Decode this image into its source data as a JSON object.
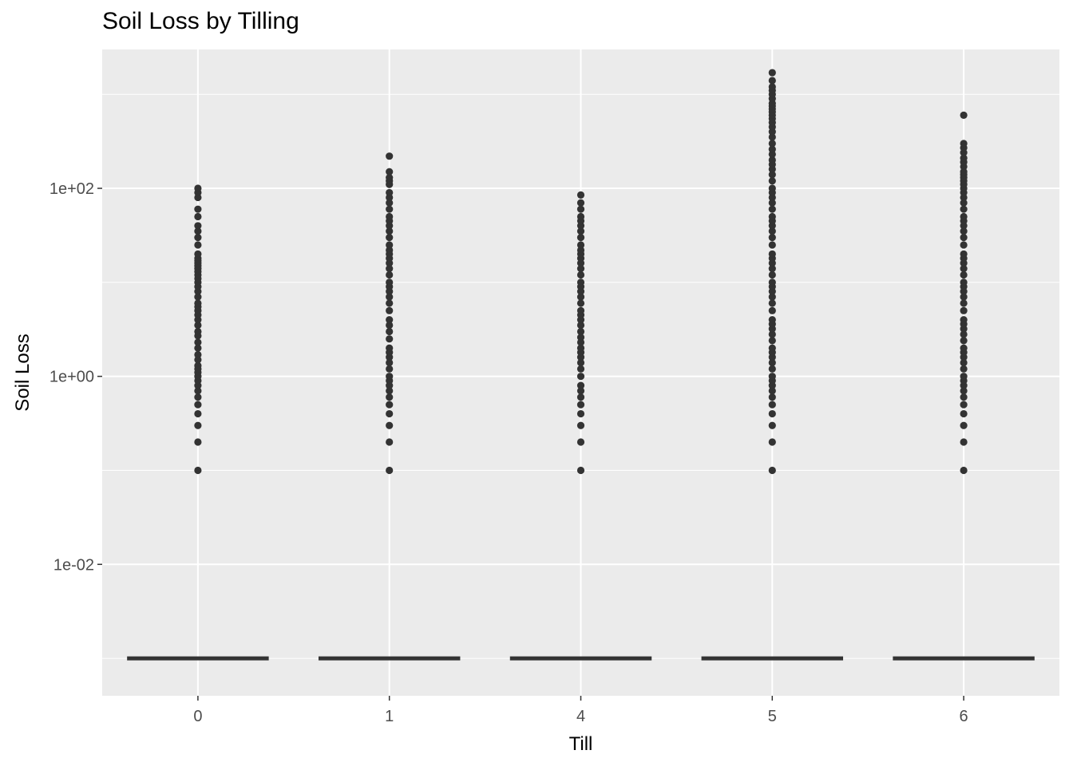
{
  "chart_data": {
    "type": "boxplot",
    "title": "Soil Loss by Tilling",
    "xlabel": "Till",
    "ylabel": "Soil Loss",
    "y_scale": "log10",
    "ylim": [
      0.0004,
      3000
    ],
    "y_ticks": [
      {
        "value": 0.01,
        "label": "1e-02"
      },
      {
        "value": 1,
        "label": "1e+00"
      },
      {
        "value": 100,
        "label": "1e+02"
      }
    ],
    "y_minor_ticks": [
      0.001,
      0.1,
      10,
      1000
    ],
    "grid": true,
    "categories": [
      "0",
      "1",
      "4",
      "5",
      "6"
    ],
    "box_median": [
      0.001,
      0.001,
      0.001,
      0.001,
      0.001
    ],
    "outliers": [
      [
        0.1,
        0.2,
        0.3,
        0.4,
        0.5,
        0.6,
        0.7,
        0.8,
        0.9,
        1,
        1.1,
        1.2,
        1.3,
        1.5,
        1.7,
        2,
        2.3,
        2.7,
        3,
        3.5,
        4,
        4.5,
        5,
        5.5,
        6,
        7,
        8,
        9,
        10,
        11,
        12,
        13,
        14,
        15,
        16,
        17,
        18,
        20,
        25,
        30,
        35,
        40,
        50,
        60,
        80,
        90,
        100
      ],
      [
        0.1,
        0.2,
        0.3,
        0.4,
        0.5,
        0.6,
        0.7,
        0.8,
        0.9,
        1,
        1.2,
        1.4,
        1.6,
        1.8,
        2,
        2.5,
        3,
        3.5,
        4,
        5,
        6,
        7,
        8,
        9,
        10,
        12,
        14,
        16,
        18,
        20,
        22,
        25,
        30,
        35,
        40,
        45,
        50,
        60,
        70,
        80,
        90,
        110,
        120,
        130,
        150,
        220
      ],
      [
        0.1,
        0.2,
        0.3,
        0.4,
        0.5,
        0.6,
        0.7,
        0.8,
        1,
        1.2,
        1.4,
        1.6,
        1.8,
        2,
        2.3,
        2.6,
        3,
        3.5,
        4,
        4.5,
        5,
        6,
        7,
        8,
        9,
        10,
        12,
        14,
        16,
        18,
        20,
        22,
        25,
        30,
        35,
        40,
        45,
        50,
        60,
        70,
        85
      ],
      [
        0.1,
        0.2,
        0.3,
        0.4,
        0.5,
        0.6,
        0.7,
        0.8,
        0.9,
        1,
        1.2,
        1.4,
        1.6,
        1.8,
        2,
        2.4,
        2.8,
        3.2,
        3.6,
        4,
        5,
        6,
        7,
        8,
        9,
        10,
        12,
        14,
        16,
        18,
        20,
        25,
        30,
        35,
        40,
        45,
        50,
        60,
        70,
        80,
        90,
        100,
        120,
        140,
        160,
        180,
        200,
        230,
        260,
        300,
        350,
        400,
        450,
        500,
        550,
        600,
        650,
        700,
        750,
        800,
        900,
        1000,
        1100,
        1200,
        1400,
        1700
      ],
      [
        0.1,
        0.2,
        0.3,
        0.4,
        0.5,
        0.6,
        0.7,
        0.8,
        0.9,
        1,
        1.2,
        1.4,
        1.6,
        1.8,
        2,
        2.4,
        2.8,
        3.2,
        3.6,
        4,
        5,
        6,
        7,
        8,
        9,
        10,
        12,
        14,
        16,
        18,
        20,
        25,
        30,
        35,
        40,
        45,
        50,
        60,
        70,
        80,
        90,
        100,
        110,
        120,
        130,
        140,
        150,
        170,
        190,
        210,
        240,
        270,
        300,
        600
      ]
    ],
    "colors": {
      "panel": "#ebebeb",
      "grid": "#ffffff",
      "points": "#333333",
      "box": "#333333"
    }
  }
}
